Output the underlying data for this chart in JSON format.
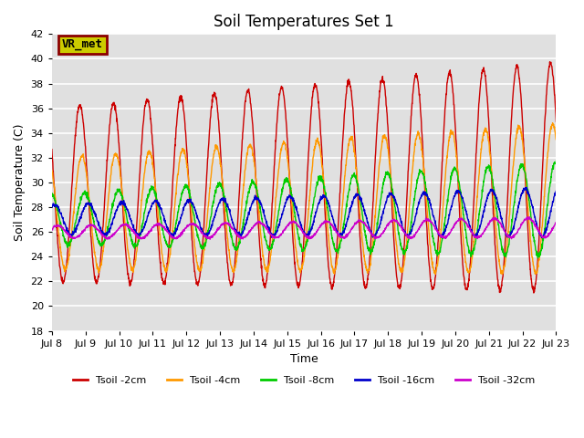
{
  "title": "Soil Temperatures Set 1",
  "xlabel": "Time",
  "ylabel": "Soil Temperature (C)",
  "ylim": [
    18,
    42
  ],
  "yticks": [
    18,
    20,
    22,
    24,
    26,
    28,
    30,
    32,
    34,
    36,
    38,
    40,
    42
  ],
  "n_days": 15,
  "x_tick_labels": [
    "Jul 8",
    "Jul 9",
    "Jul 10",
    "Jul 11",
    "Jul 12",
    "Jul 13",
    "Jul 14",
    "Jul 15",
    "Jul 16",
    "Jul 17",
    "Jul 18",
    "Jul 19",
    "Jul 20",
    "Jul 21",
    "Jul 22",
    "Jul 23"
  ],
  "series_names": [
    "Tsoil -2cm",
    "Tsoil -4cm",
    "Tsoil -8cm",
    "Tsoil -16cm",
    "Tsoil -32cm"
  ],
  "series_colors": [
    "#cc0000",
    "#ff9900",
    "#00cc00",
    "#0000cc",
    "#cc00cc"
  ],
  "line_width": 1.0,
  "annotation_text": "VR_met",
  "annotation_bg": "#cccc00",
  "annotation_border": "#8b0000",
  "bg_color": "#e0e0e0",
  "grid_color": "#ffffff",
  "title_fontsize": 12,
  "label_fontsize": 9,
  "tick_fontsize": 8,
  "legend_fontsize": 8,
  "samples_per_day": 144
}
